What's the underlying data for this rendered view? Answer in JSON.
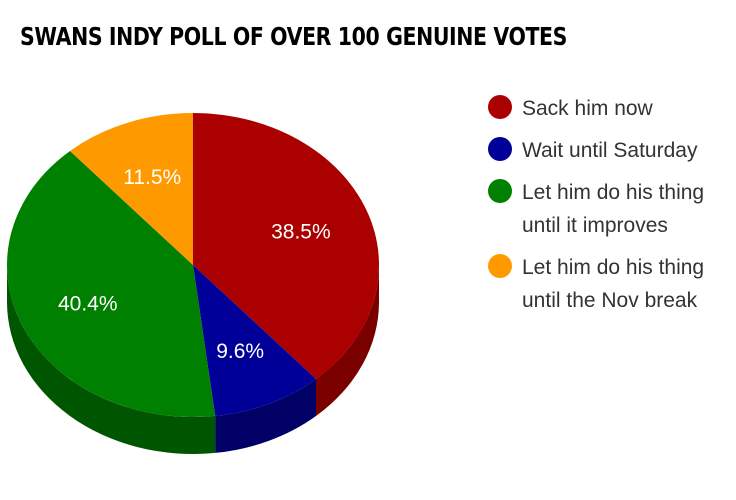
{
  "chart_data": {
    "type": "pie",
    "title": "SWANS INDY POLL OF OVER 100 GENUINE VOTES",
    "slices": [
      {
        "label": "Sack him now",
        "value": 38.5,
        "display": "38.5%",
        "color": "#aa0000",
        "side_color": "#7a0000"
      },
      {
        "label": "Wait until Saturday",
        "value": 9.6,
        "display": "9.6%",
        "color": "#000099",
        "side_color": "#000066"
      },
      {
        "label": "Let him do his thing\nuntil it improves",
        "value": 40.4,
        "display": "40.4%",
        "color": "#008000",
        "side_color": "#005500"
      },
      {
        "label": "Let him do his thing\nuntil the Nov break",
        "value": 11.5,
        "display": "11.5%",
        "color": "#ff9900",
        "side_color": "#b36b00"
      }
    ],
    "legend_position": "right",
    "style": "3d"
  }
}
